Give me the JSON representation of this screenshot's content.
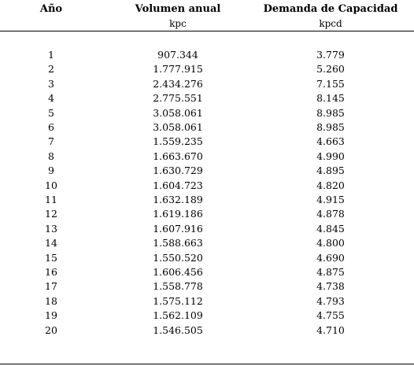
{
  "table": {
    "headers": [
      "Año",
      "Volumen anual",
      "Demanda de Capacidad"
    ],
    "units": [
      "kpc",
      "kpcd"
    ],
    "rows": [
      [
        "1",
        "907.344",
        "3.779"
      ],
      [
        "2",
        "1.777.915",
        "5.260"
      ],
      [
        "3",
        "2.434.276",
        "7.155"
      ],
      [
        "4",
        "2.775.551",
        "8.145"
      ],
      [
        "5",
        "3.058.061",
        "8.985"
      ],
      [
        "6",
        "3.058.061",
        "8.985"
      ],
      [
        "7",
        "1.559.235",
        "4.663"
      ],
      [
        "8",
        "1.663.670",
        "4.990"
      ],
      [
        "9",
        "1.630.729",
        "4.895"
      ],
      [
        "10",
        "1.604.723",
        "4.820"
      ],
      [
        "11",
        "1.632.189",
        "4.915"
      ],
      [
        "12",
        "1.619.186",
        "4.878"
      ],
      [
        "13",
        "1.607.916",
        "4.845"
      ],
      [
        "14",
        "1.588.663",
        "4.800"
      ],
      [
        "15",
        "1.550.520",
        "4.690"
      ],
      [
        "16",
        "1.606.456",
        "4.875"
      ],
      [
        "17",
        "1.558.778",
        "4.738"
      ],
      [
        "18",
        "1.575.112",
        "4.793"
      ],
      [
        "19",
        "1.562.109",
        "4.755"
      ],
      [
        "20",
        "1.546.505",
        "4.710"
      ]
    ]
  }
}
